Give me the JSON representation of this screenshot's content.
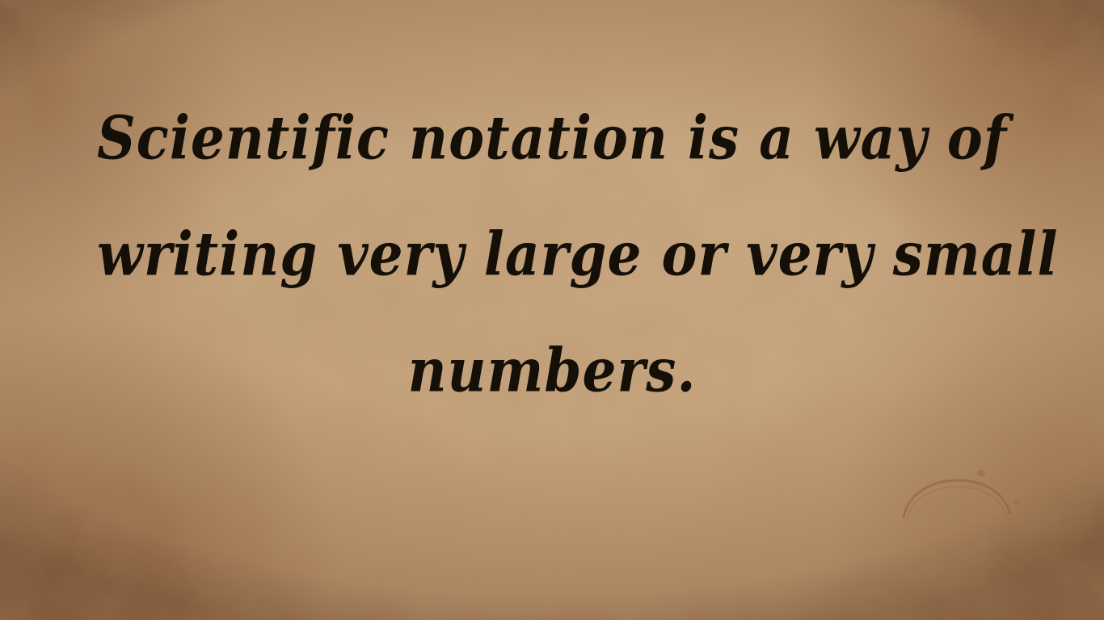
{
  "slide": {
    "lines": [
      "Scientific notation is a way of",
      "writing very large or very small",
      "numbers."
    ]
  },
  "colors": {
    "parchment": "#cba983",
    "edge_burn": "#6e3c1e",
    "text": "#141008"
  }
}
